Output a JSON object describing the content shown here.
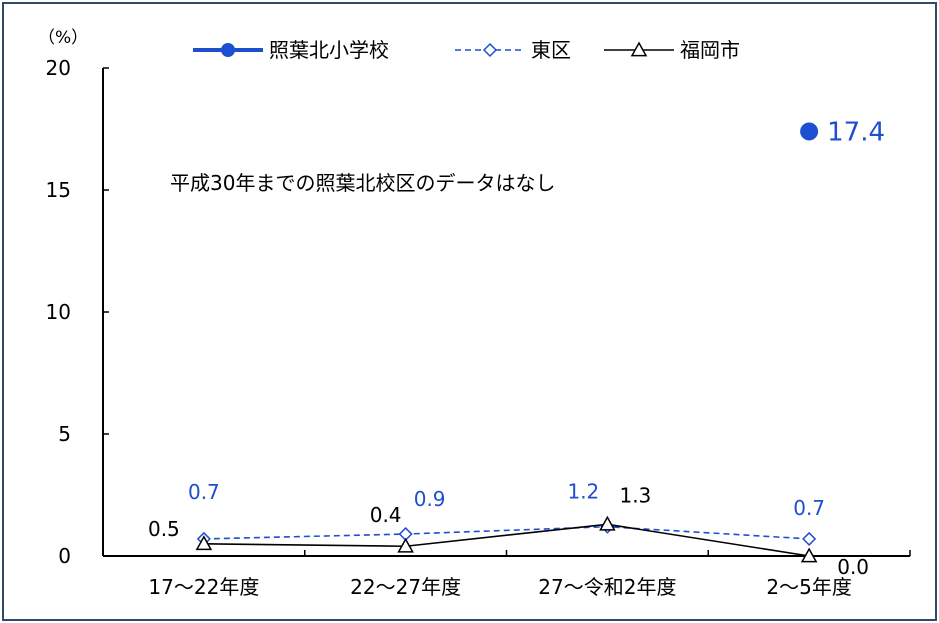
{
  "chart_data": {
    "type": "line",
    "y_unit": "（%）",
    "ylim": [
      0,
      20
    ],
    "y_ticks": [
      "0",
      "5",
      "10",
      "15",
      "20"
    ],
    "categories": [
      "17～22年度",
      "22～27年度",
      "27～令和2年度",
      "2～5年度"
    ],
    "series": [
      {
        "name": "照葉北小学校",
        "values": [
          null,
          null,
          null,
          17.4
        ],
        "labels": [
          "",
          "",
          "",
          "17.4"
        ],
        "color": "#1f4fd1",
        "marker": "circle",
        "style": "solid-bold"
      },
      {
        "name": "東区",
        "values": [
          0.7,
          0.9,
          1.2,
          0.7
        ],
        "labels": [
          "0.7",
          "0.9",
          "1.2",
          "0.7"
        ],
        "color": "#1f4fd1",
        "marker": "diamond-open",
        "style": "dashed"
      },
      {
        "name": "福岡市",
        "values": [
          0.5,
          0.4,
          1.3,
          0.0
        ],
        "labels": [
          "0.5",
          "0.4",
          "1.3",
          "0.0"
        ],
        "color": "#000000",
        "marker": "triangle-open",
        "style": "solid"
      }
    ],
    "annotation": "平成30年までの照葉北校区のデータはなし",
    "legend_position": "top",
    "grid": false
  }
}
